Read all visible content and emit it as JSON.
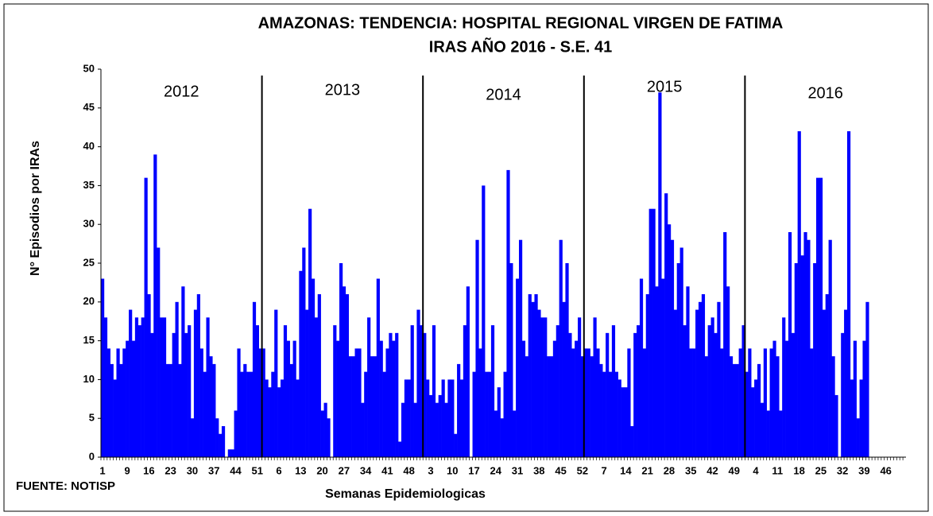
{
  "chart_data": {
    "type": "bar",
    "title": [
      "AMAZONAS: TENDENCIA:  HOSPITAL REGIONAL VIRGEN DE FATIMA",
      "IRAS AÑO 2016 - S.E. 41"
    ],
    "xlabel": "Semanas Epidemiologicas",
    "ylabel": "N° Episodios por IRAs",
    "source": "FUENTE: NOTISP",
    "annotations": [
      "2012",
      "2013",
      "2014",
      "2015",
      "2016"
    ],
    "color": "#0000ff",
    "ylim": [
      0,
      50
    ],
    "yticks": [
      0,
      5,
      10,
      15,
      20,
      25,
      30,
      35,
      40,
      45,
      50
    ],
    "categories": [
      "1",
      null,
      null,
      null,
      null,
      null,
      null,
      null,
      "9",
      null,
      null,
      null,
      null,
      null,
      null,
      "16",
      null,
      null,
      null,
      null,
      null,
      null,
      "23",
      null,
      null,
      null,
      null,
      null,
      null,
      "30",
      null,
      null,
      null,
      null,
      null,
      null,
      "37",
      null,
      null,
      null,
      null,
      null,
      null,
      "44",
      null,
      null,
      null,
      null,
      null,
      null,
      "51",
      null,
      null,
      null,
      null,
      null,
      null,
      "6",
      null,
      null,
      null,
      null,
      null,
      null,
      "13",
      null,
      null,
      null,
      null,
      null,
      null,
      "20",
      null,
      null,
      null,
      null,
      null,
      null,
      "27",
      null,
      null,
      null,
      null,
      null,
      null,
      "34",
      null,
      null,
      null,
      null,
      null,
      null,
      "41",
      null,
      null,
      null,
      null,
      null,
      null,
      "48",
      null,
      null,
      null,
      null,
      null,
      null,
      "3",
      null,
      null,
      null,
      null,
      null,
      null,
      "10",
      null,
      null,
      null,
      null,
      null,
      null,
      "17",
      null,
      null,
      null,
      null,
      null,
      null,
      "24",
      null,
      null,
      null,
      null,
      null,
      null,
      "31",
      null,
      null,
      null,
      null,
      null,
      null,
      "38",
      null,
      null,
      null,
      null,
      null,
      null,
      "45",
      null,
      null,
      null,
      null,
      null,
      null,
      "52",
      null,
      null,
      null,
      null,
      null,
      null,
      "7",
      null,
      null,
      null,
      null,
      null,
      null,
      "14",
      null,
      null,
      null,
      null,
      null,
      null,
      "21",
      null,
      null,
      null,
      null,
      null,
      null,
      "28",
      null,
      null,
      null,
      null,
      null,
      null,
      "35",
      null,
      null,
      null,
      null,
      null,
      null,
      "42",
      null,
      null,
      null,
      null,
      null,
      null,
      "49",
      null,
      null,
      null,
      null,
      null,
      null,
      "4",
      null,
      null,
      null,
      null,
      null,
      null,
      "11",
      null,
      null,
      null,
      null,
      null,
      null,
      "18",
      null,
      null,
      null,
      null,
      null,
      null,
      "25",
      null,
      null,
      null,
      null,
      null,
      null,
      "32",
      null,
      null,
      null,
      null,
      null,
      null,
      "39",
      null,
      null,
      null,
      null,
      null,
      null,
      "46",
      null,
      null,
      null,
      null,
      null,
      null
    ],
    "values": [
      23,
      18,
      14,
      12,
      10,
      14,
      12,
      14,
      15,
      19,
      15,
      18,
      17,
      18,
      36,
      21,
      16,
      39,
      27,
      18,
      18,
      12,
      12,
      16,
      20,
      12,
      22,
      16,
      17,
      5,
      19,
      21,
      14,
      11,
      18,
      13,
      12,
      5,
      3,
      4,
      0,
      1,
      1,
      6,
      14,
      11,
      12,
      11,
      11,
      20,
      17,
      14,
      14,
      10,
      9,
      11,
      19,
      9,
      10,
      17,
      15,
      12,
      15,
      10,
      24,
      27,
      19,
      32,
      23,
      18,
      21,
      6,
      7,
      5,
      0,
      17,
      15,
      25,
      22,
      21,
      13,
      13,
      14,
      14,
      7,
      11,
      18,
      13,
      13,
      23,
      15,
      11,
      14,
      16,
      15,
      16,
      2,
      7,
      10,
      10,
      17,
      7,
      19,
      17,
      16,
      10,
      8,
      17,
      7,
      8,
      10,
      7,
      10,
      10,
      3,
      12,
      10,
      17,
      22,
      0,
      11,
      28,
      14,
      35,
      11,
      11,
      17,
      6,
      9,
      5,
      11,
      37,
      25,
      6,
      23,
      28,
      15,
      13,
      21,
      20,
      21,
      19,
      18,
      18,
      13,
      13,
      15,
      17,
      28,
      20,
      25,
      16,
      14,
      15,
      18,
      13,
      14,
      14,
      13,
      18,
      14,
      12,
      11,
      16,
      11,
      17,
      11,
      10,
      9,
      9,
      14,
      4,
      16,
      17,
      23,
      14,
      21,
      32,
      32,
      22,
      47,
      23,
      34,
      30,
      28,
      19,
      25,
      27,
      17,
      22,
      14,
      14,
      19,
      20,
      21,
      13,
      17,
      18,
      16,
      20,
      14,
      29,
      22,
      13,
      12,
      12,
      14,
      17,
      11,
      14,
      9,
      10,
      12,
      7,
      14,
      6,
      14,
      15,
      13,
      6,
      18,
      15,
      29,
      16,
      25,
      42,
      26,
      29,
      28,
      14,
      25,
      36,
      36,
      19,
      21,
      28,
      13,
      8,
      0,
      16,
      19,
      42,
      10,
      15,
      5,
      10,
      15,
      20,
      null,
      null,
      null,
      null,
      null,
      null,
      null,
      null,
      null,
      null,
      null,
      null
    ]
  }
}
